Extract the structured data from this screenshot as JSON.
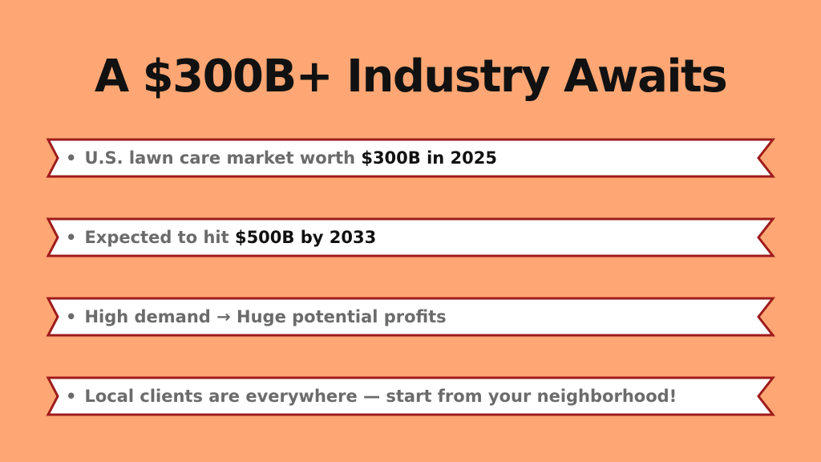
{
  "title": "A $300B+ Industry Awaits",
  "bullet_symbol": "•",
  "items": [
    {
      "normal": "U.S. lawn care market worth ",
      "bold": "$300B in 2025"
    },
    {
      "normal": "Expected to hit ",
      "bold": "$500B by 2033"
    },
    {
      "normal": "High demand → Huge potential profits",
      "bold": ""
    },
    {
      "normal": "Local clients are everywhere — start from your neighborhood!",
      "bold": ""
    }
  ],
  "colors": {
    "background": "#FFA774",
    "banner_fill": "#FFFFFF",
    "banner_border": "#9E1B1B",
    "title": "#111111",
    "text": "#6b6b6b",
    "emphasis": "#111111"
  }
}
